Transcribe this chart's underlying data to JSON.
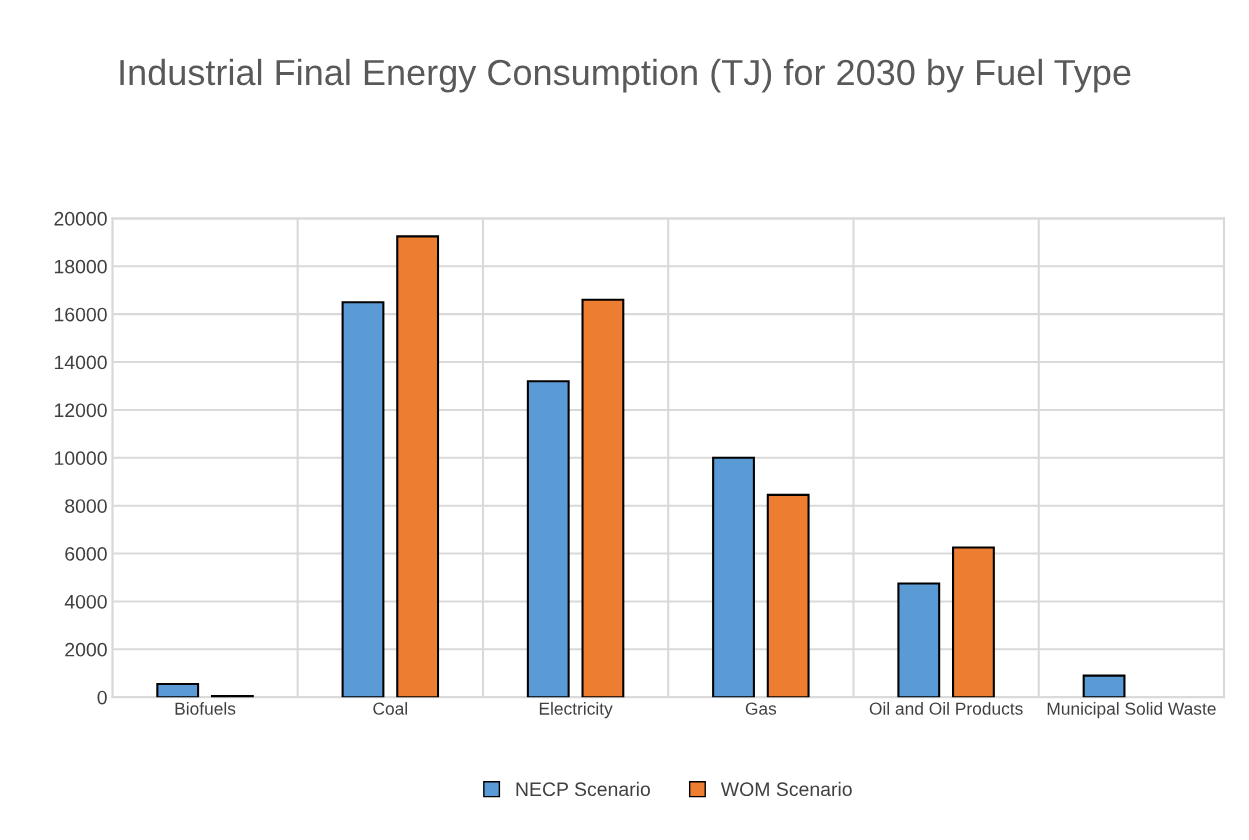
{
  "chart_data": {
    "type": "bar",
    "title": "Industrial Final Energy Consumption (TJ) for 2030 by Fuel Type",
    "categories": [
      "Biofuels",
      "Coal",
      "Electricity",
      "Gas",
      "Oil and Oil Products",
      "Municipal Solid Waste"
    ],
    "series": [
      {
        "name": "NECP Scenario",
        "color": "#5b9bd5",
        "values": [
          550,
          16500,
          13200,
          10000,
          4750,
          900
        ]
      },
      {
        "name": "WOM Scenario",
        "color": "#ed7d31",
        "values": [
          50,
          19250,
          16600,
          8450,
          6250,
          null
        ]
      }
    ],
    "ylim": [
      0,
      20000
    ],
    "yticks": [
      0,
      2000,
      4000,
      6000,
      8000,
      10000,
      12000,
      14000,
      16000,
      18000,
      20000
    ],
    "grid": true,
    "legend": "bottom"
  }
}
